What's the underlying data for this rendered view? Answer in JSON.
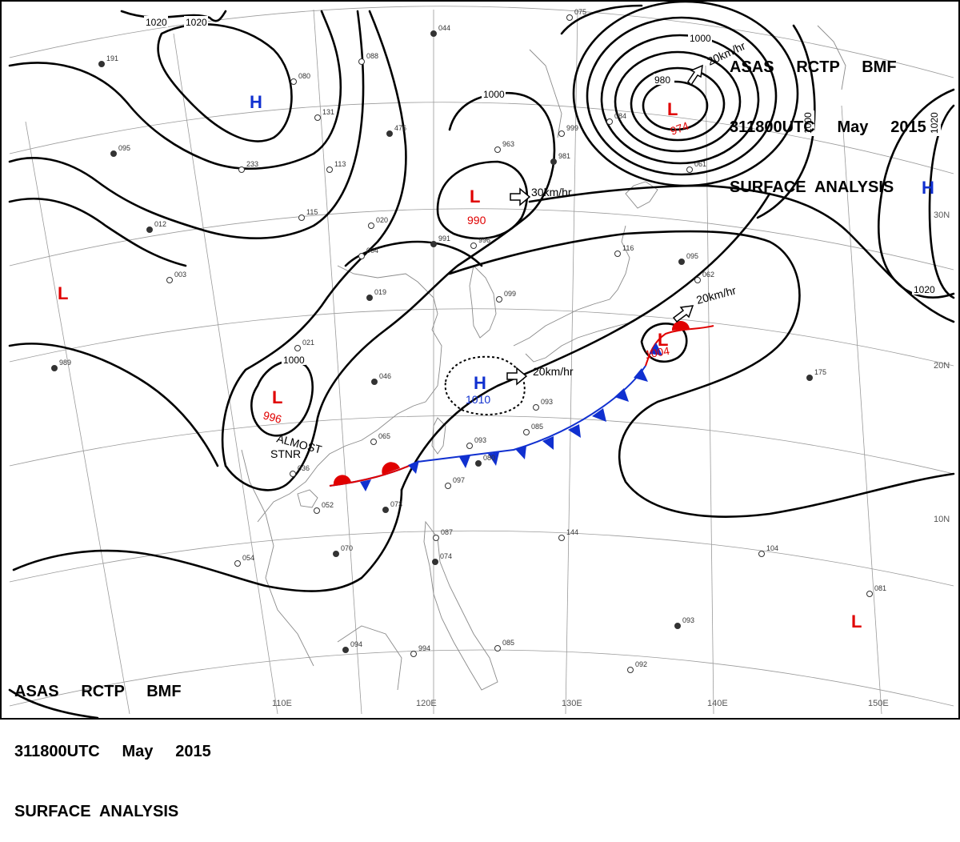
{
  "title": {
    "line1": "ASAS     RCTP     BMF",
    "line2": "311800UTC     May     2015",
    "line3": "SURFACE  ANALYSIS"
  },
  "grid_labels": {
    "lon": [
      "110E",
      "120E",
      "130E",
      "140E",
      "150E"
    ],
    "lat": [
      "30N",
      "20N",
      "10N"
    ]
  },
  "isobar_labels": [
    "1020",
    "1020",
    "1000",
    "980",
    "1000",
    "1000",
    "1020",
    "1020",
    "1000"
  ],
  "pressure_centers": [
    {
      "type": "H",
      "pressure": ""
    },
    {
      "type": "L",
      "pressure": ""
    },
    {
      "type": "L",
      "pressure": "990"
    },
    {
      "type": "L",
      "pressure": "974"
    },
    {
      "type": "H",
      "pressure": ""
    },
    {
      "type": "L",
      "pressure": "996"
    },
    {
      "type": "H",
      "pressure": "1010"
    },
    {
      "type": "L",
      "pressure": "1004"
    },
    {
      "type": "L",
      "pressure": ""
    }
  ],
  "motions": [
    "30km/hr",
    "20km/hr",
    "20km/hr",
    "20km/hr"
  ],
  "notes": [
    "ALMOST",
    "STNR"
  ],
  "station_values": [
    "044",
    "075",
    "088",
    "191",
    "080",
    "131",
    "476",
    "999",
    "963",
    "981",
    "233",
    "113",
    "095",
    "084",
    "061",
    "012",
    "115",
    "020",
    "991",
    "996",
    "004",
    "019",
    "099",
    "116",
    "095",
    "062",
    "021",
    "046",
    "093",
    "085",
    "175",
    "065",
    "093",
    "080",
    "097",
    "052",
    "070",
    "054",
    "087",
    "074",
    "144",
    "104",
    "093",
    "081",
    "092",
    "094",
    "994",
    "085",
    "989",
    "003",
    "036",
    "073"
  ],
  "colors": {
    "high": "#1030d0",
    "low": "#e00000",
    "isobar": "#000000",
    "grid": "#9a9a9a"
  }
}
